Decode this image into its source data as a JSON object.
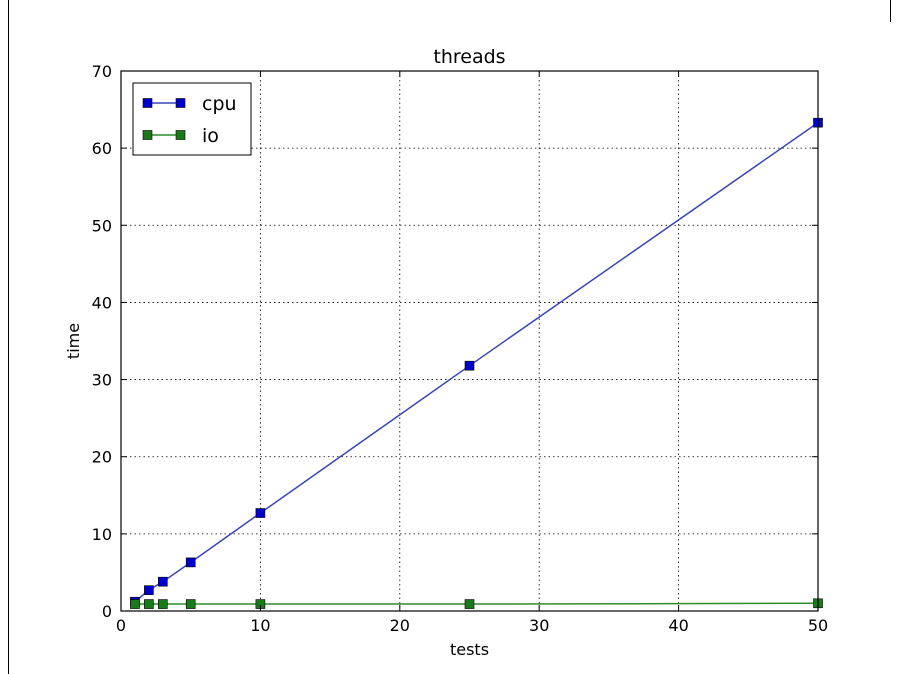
{
  "chart_data": {
    "type": "line",
    "title": "threads",
    "xlabel": "tests",
    "ylabel": "time",
    "xlim": [
      0,
      50
    ],
    "ylim": [
      0,
      70
    ],
    "xticks": [
      0,
      10,
      20,
      30,
      40,
      50
    ],
    "yticks": [
      0,
      10,
      20,
      30,
      40,
      50,
      60,
      70
    ],
    "grid": true,
    "legend_position": "top-left",
    "series": [
      {
        "name": "cpu",
        "color": "#0000cc",
        "line_color": "#3a46b4",
        "marker": "square",
        "x": [
          1,
          2,
          3,
          5,
          10,
          25,
          50
        ],
        "y": [
          1.2,
          2.7,
          3.8,
          6.3,
          12.7,
          31.8,
          63.3
        ]
      },
      {
        "name": "io",
        "color": "#1a7a1a",
        "line_color": "#2e8b2e",
        "marker": "square",
        "x": [
          1,
          2,
          3,
          5,
          10,
          25,
          50
        ],
        "y": [
          0.9,
          0.9,
          0.9,
          0.9,
          0.9,
          0.9,
          1.0
        ]
      }
    ]
  }
}
